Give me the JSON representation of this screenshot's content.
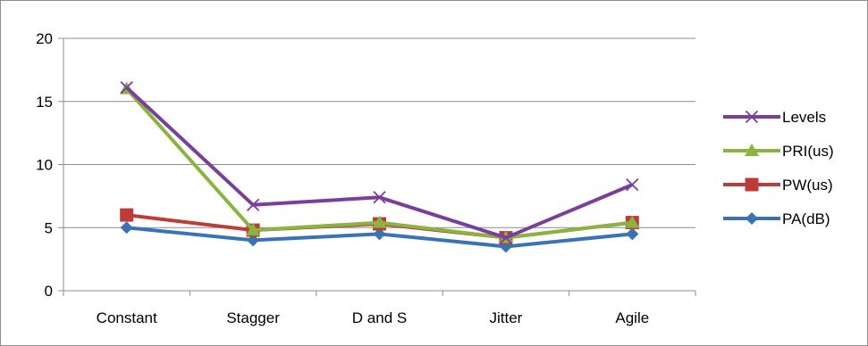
{
  "chart_data": {
    "type": "line",
    "title": "",
    "xlabel": "",
    "ylabel": "",
    "categories": [
      "Constant",
      "Stagger",
      "D and S",
      "Jitter",
      "Agile"
    ],
    "ylim": [
      0,
      20
    ],
    "yticks": [
      "0",
      "5",
      "10",
      "15",
      "20"
    ],
    "grid": "horizontal",
    "legend_position": "right",
    "series": [
      {
        "name": "Levels",
        "values": [
          16.1,
          6.8,
          7.4,
          4.2,
          8.4
        ],
        "color": "#7a3f9a",
        "marker": "x"
      },
      {
        "name": "PRI(us)",
        "values": [
          16.0,
          4.8,
          5.4,
          4.2,
          5.4
        ],
        "color": "#8ab43f",
        "marker": "triangle"
      },
      {
        "name": "PW(us)",
        "values": [
          6.0,
          4.8,
          5.3,
          4.2,
          5.4
        ],
        "color": "#be3c37",
        "marker": "square"
      },
      {
        "name": "PA(dB)",
        "values": [
          5.0,
          4.0,
          4.5,
          3.5,
          4.5
        ],
        "color": "#3a73b5",
        "marker": "diamond"
      }
    ]
  }
}
